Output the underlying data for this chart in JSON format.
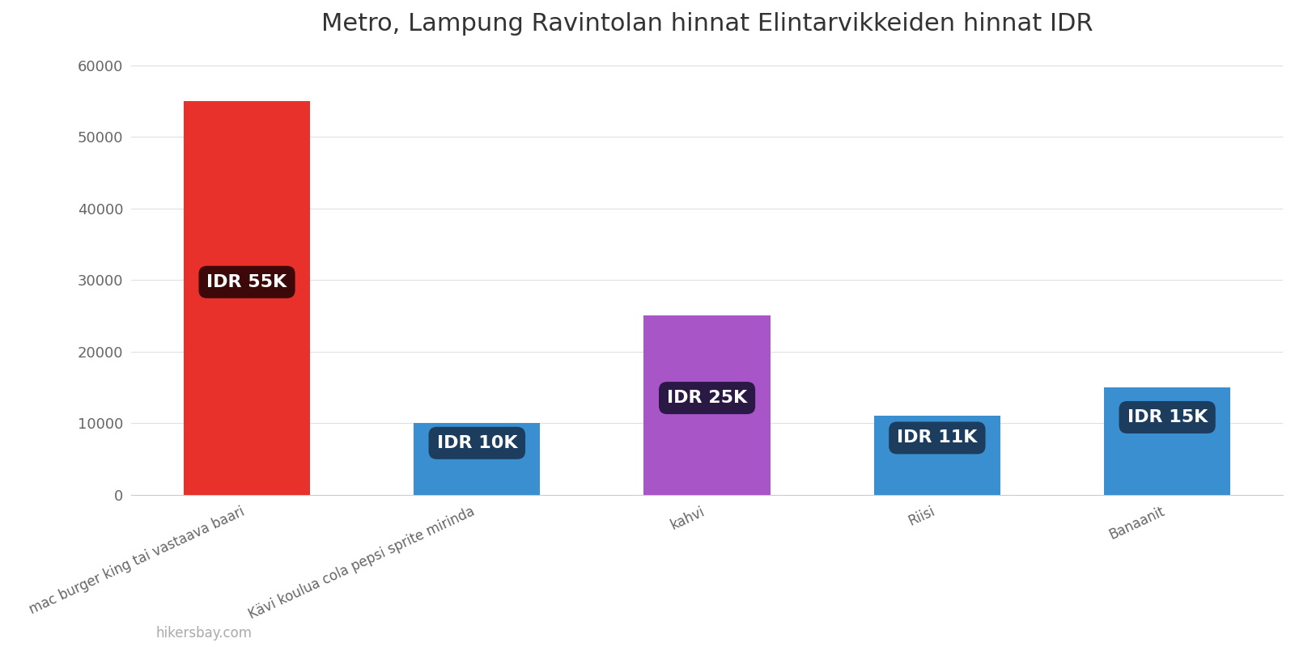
{
  "title": "Metro, Lampung Ravintolan hinnat Elintarvikkeiden hinnat IDR",
  "categories": [
    "mac burger king tai vastaava baari",
    "Kävi koulua cola pepsi sprite mirinda",
    "kahvi",
    "Riisi",
    "Banaanit"
  ],
  "values": [
    55000,
    10000,
    25000,
    11000,
    15000
  ],
  "bar_colors": [
    "#e8312a",
    "#3a8fd1",
    "#a855c8",
    "#3a8fd1",
    "#3a8fd1"
  ],
  "labels": [
    "IDR 55K",
    "IDR 10K",
    "IDR 25K",
    "IDR 11K",
    "IDR 15K"
  ],
  "label_bg_colors": [
    "#3d0808",
    "#1c3d5e",
    "#2a1845",
    "#1c3d5e",
    "#1c3d5e"
  ],
  "ylim": [
    0,
    62000
  ],
  "yticks": [
    0,
    10000,
    20000,
    30000,
    40000,
    50000,
    60000
  ],
  "watermark": "hikersbay.com",
  "background_color": "#ffffff",
  "title_fontsize": 22,
  "label_fontsize": 16,
  "tick_fontsize": 13
}
